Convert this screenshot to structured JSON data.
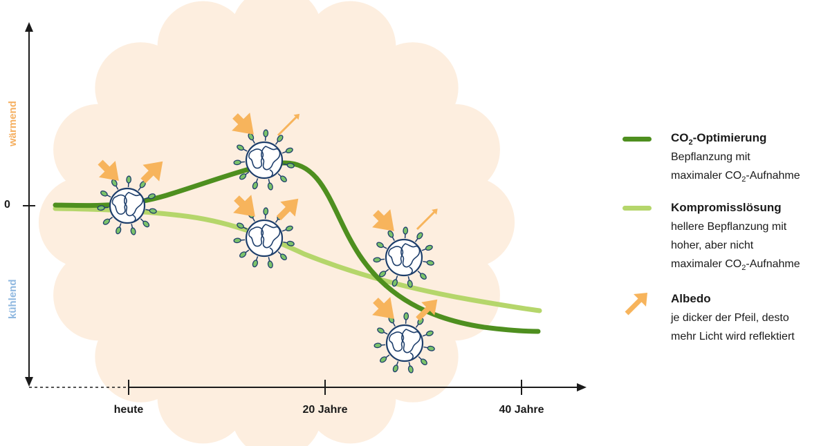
{
  "y_axis": {
    "zero_label": "0",
    "warming_label": "wärmend",
    "cooling_label": "kühlend"
  },
  "x_axis": {
    "ticks": [
      "heute",
      "20 Jahre",
      "40 Jahre"
    ]
  },
  "legend": {
    "co2": {
      "title_main": "CO",
      "title_sub": "2",
      "title_rest": "-Optimierung",
      "desc_line1": "Bepflanzung mit",
      "desc_line2_pre": "maximaler CO",
      "desc_line2_sub": "2",
      "desc_line2_post": "-Aufnahme"
    },
    "compromise": {
      "title": "Kompromisslösung",
      "desc_line1": "hellere Bepflanzung mit",
      "desc_line2": "hoher, aber nicht",
      "desc_line3_pre": "maximaler CO",
      "desc_line3_sub": "2",
      "desc_line3_post": "-Aufnahme"
    },
    "albedo": {
      "title": "Albedo",
      "desc_line1": "je dicker der Pfeil, desto",
      "desc_line2": "mehr Licht wird reflektiert"
    }
  },
  "colors": {
    "co2_line": "#4e8f1f",
    "compromise_line": "#b5d66b",
    "arrow": "#f7b45c",
    "warming": "#f5b062",
    "cooling": "#8fb8e0",
    "sun_bg": "#fdeedf",
    "globe": "#1d3e6b"
  },
  "icons": [
    "globe-with-leaves-icon",
    "albedo-arrow-icon"
  ]
}
